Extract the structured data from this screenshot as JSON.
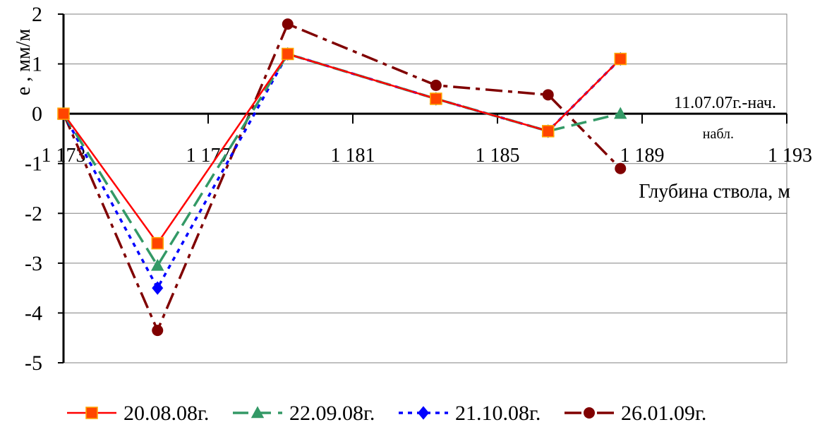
{
  "chart_data": {
    "type": "line",
    "ylabel": "e , мм/м",
    "xlabel": "Глубина ствола, м",
    "annotation_line1": "11.07.07г.-нач.",
    "annotation_line2": "набл.",
    "x_range": [
      1173,
      1193
    ],
    "ylim": [
      -5,
      2
    ],
    "y_ticks": [
      2,
      1,
      0,
      -1,
      -2,
      -3,
      -4,
      -5
    ],
    "y_tick_labels": [
      "2",
      "1",
      "0",
      "-1",
      "-2",
      "-3",
      "-4",
      "-5"
    ],
    "x_ticks": [
      1173,
      1177,
      1181,
      1185,
      1189,
      1193
    ],
    "x_tick_labels": [
      "1 173",
      "1 177",
      "1 181",
      "1 185",
      "1 189",
      "1 193"
    ],
    "grid": "horizontal",
    "legend_position": "bottom",
    "series": [
      {
        "name": "20.08.08г.",
        "color": "#ff0000",
        "line_style": "solid",
        "marker": "square",
        "marker_fill": "#ff4500",
        "points": [
          [
            1173.0,
            0.0
          ],
          [
            1175.6,
            -2.6
          ],
          [
            1179.2,
            1.2
          ],
          [
            1183.3,
            0.3
          ],
          [
            1186.4,
            -0.35
          ],
          [
            1188.4,
            1.1
          ]
        ]
      },
      {
        "name": "22.09.08г.",
        "color": "#339966",
        "line_style": "long-dash",
        "marker": "triangle",
        "marker_fill": "#339966",
        "points": [
          [
            1173.0,
            0.0
          ],
          [
            1175.6,
            -3.05
          ],
          [
            1179.2,
            1.2
          ],
          [
            1183.3,
            0.3
          ],
          [
            1186.4,
            -0.35
          ],
          [
            1188.4,
            0.0
          ]
        ]
      },
      {
        "name": "21.10.08г.",
        "color": "#0000ff",
        "line_style": "dotted",
        "marker": "diamond",
        "marker_fill": "#0000ff",
        "points": [
          [
            1173.0,
            0.0
          ],
          [
            1175.6,
            -3.5
          ],
          [
            1179.2,
            1.2
          ],
          [
            1183.3,
            0.3
          ],
          [
            1186.4,
            -0.35
          ],
          [
            1188.4,
            1.1
          ]
        ]
      },
      {
        "name": "26.01.09г.",
        "color": "#800000",
        "line_style": "dash-dot",
        "marker": "circle",
        "marker_fill": "#800000",
        "points": [
          [
            1173.0,
            0.0
          ],
          [
            1175.6,
            -4.35
          ],
          [
            1179.2,
            1.8
          ],
          [
            1183.3,
            0.57
          ],
          [
            1186.4,
            0.38
          ],
          [
            1188.4,
            -1.1
          ]
        ]
      }
    ]
  }
}
